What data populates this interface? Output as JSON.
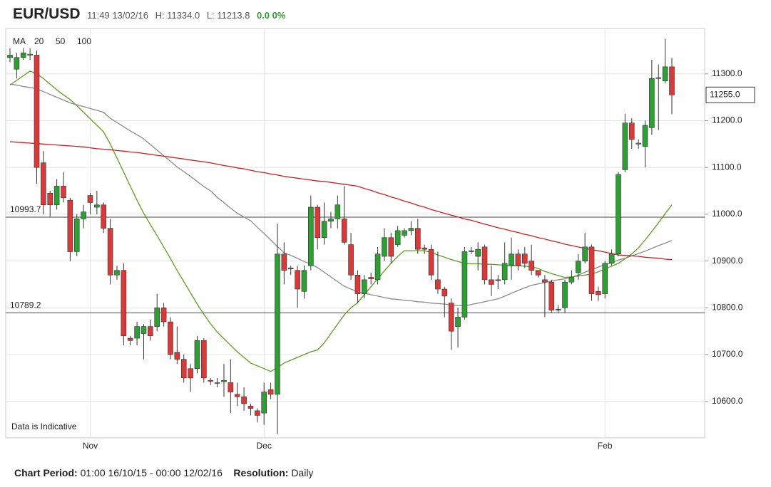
{
  "header": {
    "symbol": "EUR/USD",
    "time": "11:49 13/02/16",
    "high": "H: 11334.0",
    "low": "L: 11213.8",
    "change": "0.0 0%"
  },
  "chart_data": {
    "type": "candlestick",
    "categories": [
      null,
      null,
      null,
      null,
      null,
      null,
      null,
      null,
      null,
      null,
      null,
      null,
      "Nov",
      null,
      null,
      null,
      null,
      null,
      null,
      null,
      null,
      null,
      null,
      null,
      null,
      null,
      null,
      null,
      null,
      null,
      null,
      null,
      null,
      null,
      null,
      null,
      null,
      null,
      "Dec",
      null,
      null,
      null,
      null,
      null,
      null,
      null,
      null,
      null,
      null,
      null,
      null,
      null,
      null,
      null,
      null,
      null,
      null,
      null,
      null,
      null,
      null,
      null,
      null,
      null,
      null,
      null,
      null,
      null,
      null,
      null,
      null,
      null,
      null,
      null,
      null,
      null,
      null,
      null,
      null,
      null,
      null,
      null,
      null,
      null,
      null,
      null,
      null,
      null,
      null,
      "Feb",
      null,
      null,
      null,
      null,
      null,
      null,
      null,
      null,
      null,
      null
    ],
    "open": [
      11335,
      11310,
      11335,
      11340,
      11340,
      11110,
      11045,
      11020,
      11060,
      11030,
      10920,
      10990,
      11040,
      11015,
      11020,
      10970,
      10870,
      10880,
      10735,
      10735,
      10745,
      10760,
      10760,
      10800,
      10770,
      10705,
      10690,
      10670,
      10670,
      10730,
      10645,
      10640,
      10642,
      10640,
      10615,
      10610,
      10590,
      10580,
      10575,
      10625,
      10615,
      10915,
      10885,
      10880,
      10835,
      10890,
      11015,
      10950,
      10985,
      10990,
      10990,
      10935,
      10870,
      10830,
      10865,
      10860,
      10910,
      10950,
      10935,
      10955,
      10965,
      10970,
      10928,
      10925,
      10860,
      10840,
      10810,
      10760,
      10780,
      10920,
      10910,
      10930,
      10860,
      10860,
      10860,
      10890,
      10915,
      10915,
      10900,
      10880,
      10860,
      10855,
      10795,
      10800,
      10855,
      10875,
      10900,
      10930,
      10835,
      10830,
      10895,
      10915,
      11095,
      11195,
      11150,
      11145,
      11185,
      11290,
      11285,
      11315
    ],
    "high": [
      11360,
      11345,
      11355,
      11355,
      11350,
      11135,
      11050,
      11075,
      11090,
      11035,
      11000,
      11020,
      11045,
      11050,
      11025,
      10990,
      10890,
      10895,
      10740,
      10770,
      10765,
      10775,
      10830,
      10810,
      10780,
      10760,
      10700,
      10680,
      10740,
      10735,
      10650,
      10650,
      10680,
      10690,
      10640,
      10630,
      10595,
      10585,
      10640,
      10640,
      10980,
      10940,
      10890,
      10890,
      10890,
      11040,
      11020,
      11025,
      11005,
      11040,
      11060,
      10960,
      10880,
      10870,
      10875,
      10930,
      10970,
      10960,
      10975,
      10970,
      10985,
      10990,
      10935,
      10935,
      10920,
      10845,
      10820,
      10800,
      10930,
      10930,
      10940,
      10935,
      10890,
      10870,
      10940,
      10950,
      10925,
      10930,
      10935,
      10880,
      10870,
      10860,
      10805,
      10860,
      10880,
      10915,
      10960,
      10935,
      10845,
      10900,
      10925,
      11090,
      11215,
      11205,
      11160,
      11200,
      11330,
      11320,
      11375,
      11334
    ],
    "low": [
      11325,
      11290,
      11330,
      11330,
      11065,
      11000,
      10995,
      11010,
      11025,
      10900,
      10910,
      10970,
      11000,
      11000,
      10960,
      10850,
      10860,
      10720,
      10720,
      10720,
      10690,
      10730,
      10750,
      10760,
      10690,
      10680,
      10640,
      10620,
      10660,
      10640,
      10635,
      10630,
      10610,
      10575,
      10590,
      10580,
      10570,
      10555,
      10550,
      10605,
      10530,
      10850,
      10870,
      10800,
      10820,
      10880,
      10925,
      10935,
      10970,
      10970,
      10935,
      10860,
      10810,
      10820,
      10850,
      10850,
      10900,
      10895,
      10930,
      10950,
      10955,
      10915,
      10915,
      10860,
      10830,
      10780,
      10710,
      10715,
      10775,
      10915,
      10880,
      10850,
      10825,
      10840,
      10850,
      10860,
      10880,
      10885,
      10870,
      10865,
      10780,
      10790,
      10790,
      10790,
      10850,
      10860,
      10895,
      10815,
      10815,
      10820,
      10890,
      10910,
      11090,
      11140,
      11140,
      11100,
      11170,
      11180,
      11280,
      11213.8
    ],
    "close": [
      11340,
      11335,
      11345,
      11342,
      11100,
      11020,
      11020,
      11060,
      11035,
      10920,
      10990,
      11005,
      11025,
      11020,
      10970,
      10870,
      10880,
      10740,
      10730,
      10760,
      10760,
      10740,
      10800,
      10770,
      10700,
      10690,
      10650,
      10650,
      10730,
      10650,
      10643,
      10640,
      10645,
      10620,
      10610,
      10595,
      10585,
      10570,
      10620,
      10615,
      10915,
      10880,
      10883,
      10840,
      10880,
      11015,
      10950,
      10985,
      10990,
      11020,
      10940,
      10870,
      10830,
      10860,
      10862,
      10915,
      10950,
      10910,
      10965,
      10965,
      10970,
      10925,
      10925,
      10870,
      10840,
      10825,
      10750,
      10780,
      10920,
      10922,
      10925,
      10860,
      10850,
      10858,
      10895,
      10915,
      10890,
      10895,
      10880,
      10870,
      10855,
      10795,
      10797,
      10855,
      10865,
      10900,
      10930,
      10830,
      10828,
      10895,
      10915,
      11085,
      11195,
      11160,
      11152,
      11190,
      11290,
      11292,
      11315,
      11255
    ],
    "up_color": "#2e9e35",
    "down_color": "#d83a3a",
    "ma_label": "MA",
    "series": [
      {
        "name": "20",
        "color": "#5c9e1e",
        "values": [
          11276,
          11286,
          11296,
          11306,
          11300,
          11290,
          11278,
          11266,
          11255,
          11245,
          11232,
          11218,
          11204,
          11190,
          11176,
          11150,
          11120,
          11090,
          11060,
          11030,
          11002,
          10978,
          10954,
          10930,
          10905,
          10880,
          10856,
          10832,
          10808,
          10786,
          10766,
          10748,
          10734,
          10720,
          10706,
          10694,
          10682,
          10676,
          10670,
          10664,
          10672,
          10682,
          10688,
          10694,
          10700,
          10706,
          10710,
          10725,
          10745,
          10765,
          10785,
          10800,
          10811,
          10828,
          10845,
          10862,
          10879,
          10895,
          10910,
          10922,
          10922,
          10922,
          10922,
          10918,
          10913,
          10908,
          10903,
          10899,
          10895,
          10894,
          10894,
          10893,
          10893,
          10892,
          10891,
          10890,
          10890,
          10889,
          10888,
          10884,
          10878,
          10873,
          10869,
          10865,
          10866,
          10868,
          10870,
          10872,
          10877,
          10883,
          10889,
          10895,
          10905,
          10915,
          10928,
          10945,
          10963,
          10982,
          11001,
          11020
        ]
      },
      {
        "name": "50",
        "color": "#8a8a8a",
        "values": [
          11278,
          11276,
          11273,
          11271,
          11268,
          11262,
          11256,
          11250,
          11244,
          11238,
          11234,
          11230,
          11226,
          11222,
          11218,
          11205,
          11196,
          11187,
          11178,
          11170,
          11161,
          11149,
          11137,
          11125,
          11113,
          11101,
          11091,
          11081,
          11070,
          11059,
          11050,
          11036,
          11025,
          11013,
          11002,
          10994,
          10986,
          10972,
          10959,
          10945,
          10931,
          10918,
          10912,
          10906,
          10899,
          10893,
          10886,
          10876,
          10866,
          10856,
          10846,
          10840,
          10834,
          10831,
          10828,
          10825,
          10822,
          10819,
          10818,
          10816,
          10815,
          10813,
          10812,
          10810,
          10809,
          10808,
          10806,
          10805,
          10804,
          10807,
          10810,
          10813,
          10816,
          10819,
          10825,
          10831,
          10837,
          10843,
          10848,
          10851,
          10854,
          10857,
          10860,
          10862,
          10865,
          10870,
          10876,
          10881,
          10887,
          10892,
          10897,
          10902,
          10906,
          10911,
          10916,
          10921,
          10927,
          10933,
          10938,
          10944
        ]
      },
      {
        "name": "100",
        "color": "#cc1f1f",
        "values": [
          11155,
          11154,
          11153,
          11152,
          11151,
          11150,
          11149,
          11148,
          11147,
          11146,
          11145,
          11144,
          11142,
          11140,
          11139,
          11138,
          11136,
          11135,
          11133,
          11132,
          11130,
          11128,
          11126,
          11124,
          11122,
          11120,
          11118,
          11116,
          11114,
          11112,
          11110,
          11107,
          11104,
          11102,
          11099,
          11097,
          11094,
          11091,
          11089,
          11086,
          11084,
          11081,
          11079,
          11077,
          11075,
          11073,
          11071,
          11070,
          11068,
          11066,
          11064,
          11062,
          11060,
          11055,
          11051,
          11046,
          11042,
          11037,
          11033,
          11028,
          11024,
          11019,
          11015,
          11010,
          11006,
          11002,
          10998,
          10994,
          10990,
          10987,
          10983,
          10979,
          10975,
          10971,
          10968,
          10964,
          10961,
          10957,
          10954,
          10950,
          10947,
          10943,
          10940,
          10936,
          10933,
          10930,
          10927,
          10924,
          10922,
          10919,
          10916,
          10913,
          10912,
          10911,
          10910,
          10908,
          10907,
          10906,
          10904,
          10903
        ]
      }
    ],
    "ylim": [
      10522,
      11397
    ],
    "yticks": [
      {
        "value": 10600,
        "label": "10600.0"
      },
      {
        "value": 10700,
        "label": "10700.0"
      },
      {
        "value": 10800,
        "label": "10800.0"
      },
      {
        "value": 10900,
        "label": "10900.0"
      },
      {
        "value": 11000,
        "label": "11000.0"
      },
      {
        "value": 11100,
        "label": "11100.0"
      },
      {
        "value": 11200,
        "label": "11200.0"
      },
      {
        "value": 11300,
        "label": "11300.0"
      }
    ],
    "grid": true,
    "hlines": [
      10993.7,
      10789.2
    ],
    "last": {
      "value": 11255,
      "label": "11255.0"
    },
    "annotation": "Data is Indicative"
  },
  "footer": {
    "period_label": "Chart Period:",
    "period": "01:00 16/10/15 - 00:00 12/02/16",
    "resolution_label": "Resolution:",
    "resolution": "Daily"
  }
}
